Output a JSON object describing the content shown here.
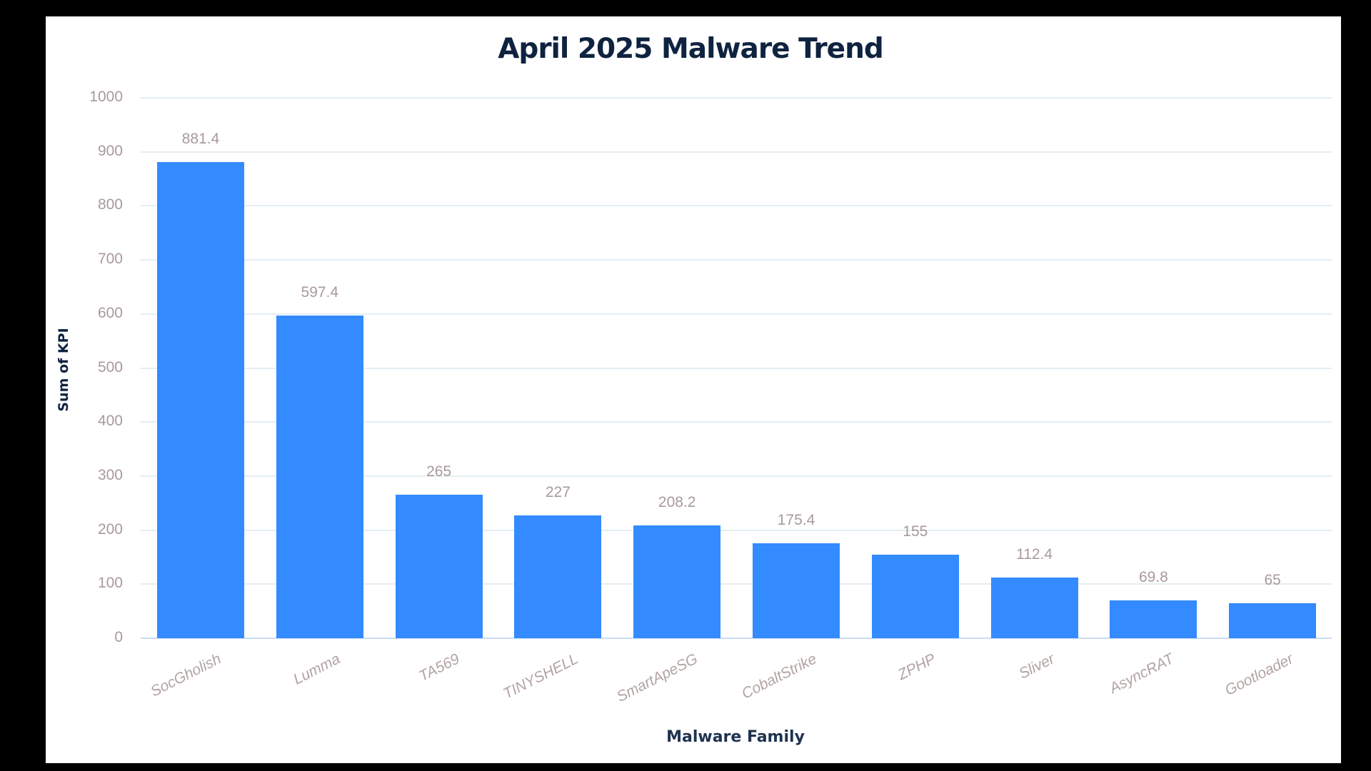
{
  "chart_data": {
    "type": "bar",
    "title": "April 2025 Malware Trend",
    "xlabel": "Malware Family",
    "ylabel": "Sum of KPI",
    "ylim": [
      0,
      1000
    ],
    "yticks": [
      0,
      100,
      200,
      300,
      400,
      500,
      600,
      700,
      800,
      900,
      1000
    ],
    "grid": true,
    "legend": null,
    "bar_color": "#338bff",
    "categories": [
      "SocGholish",
      "Lumma",
      "TA569",
      "TINYSHELL",
      "SmartApeSG",
      "CobaltStrike",
      "ZPHP",
      "Sliver",
      "AsyncRAT",
      "Gootloader"
    ],
    "values": [
      881.4,
      597.4,
      265,
      227,
      208.2,
      175.4,
      155,
      112.4,
      69.8,
      65
    ],
    "labels": [
      "881.4",
      "597.4",
      "265",
      "227",
      "208.2",
      "175.4",
      "155",
      "112.4",
      "69.8",
      "65"
    ]
  }
}
